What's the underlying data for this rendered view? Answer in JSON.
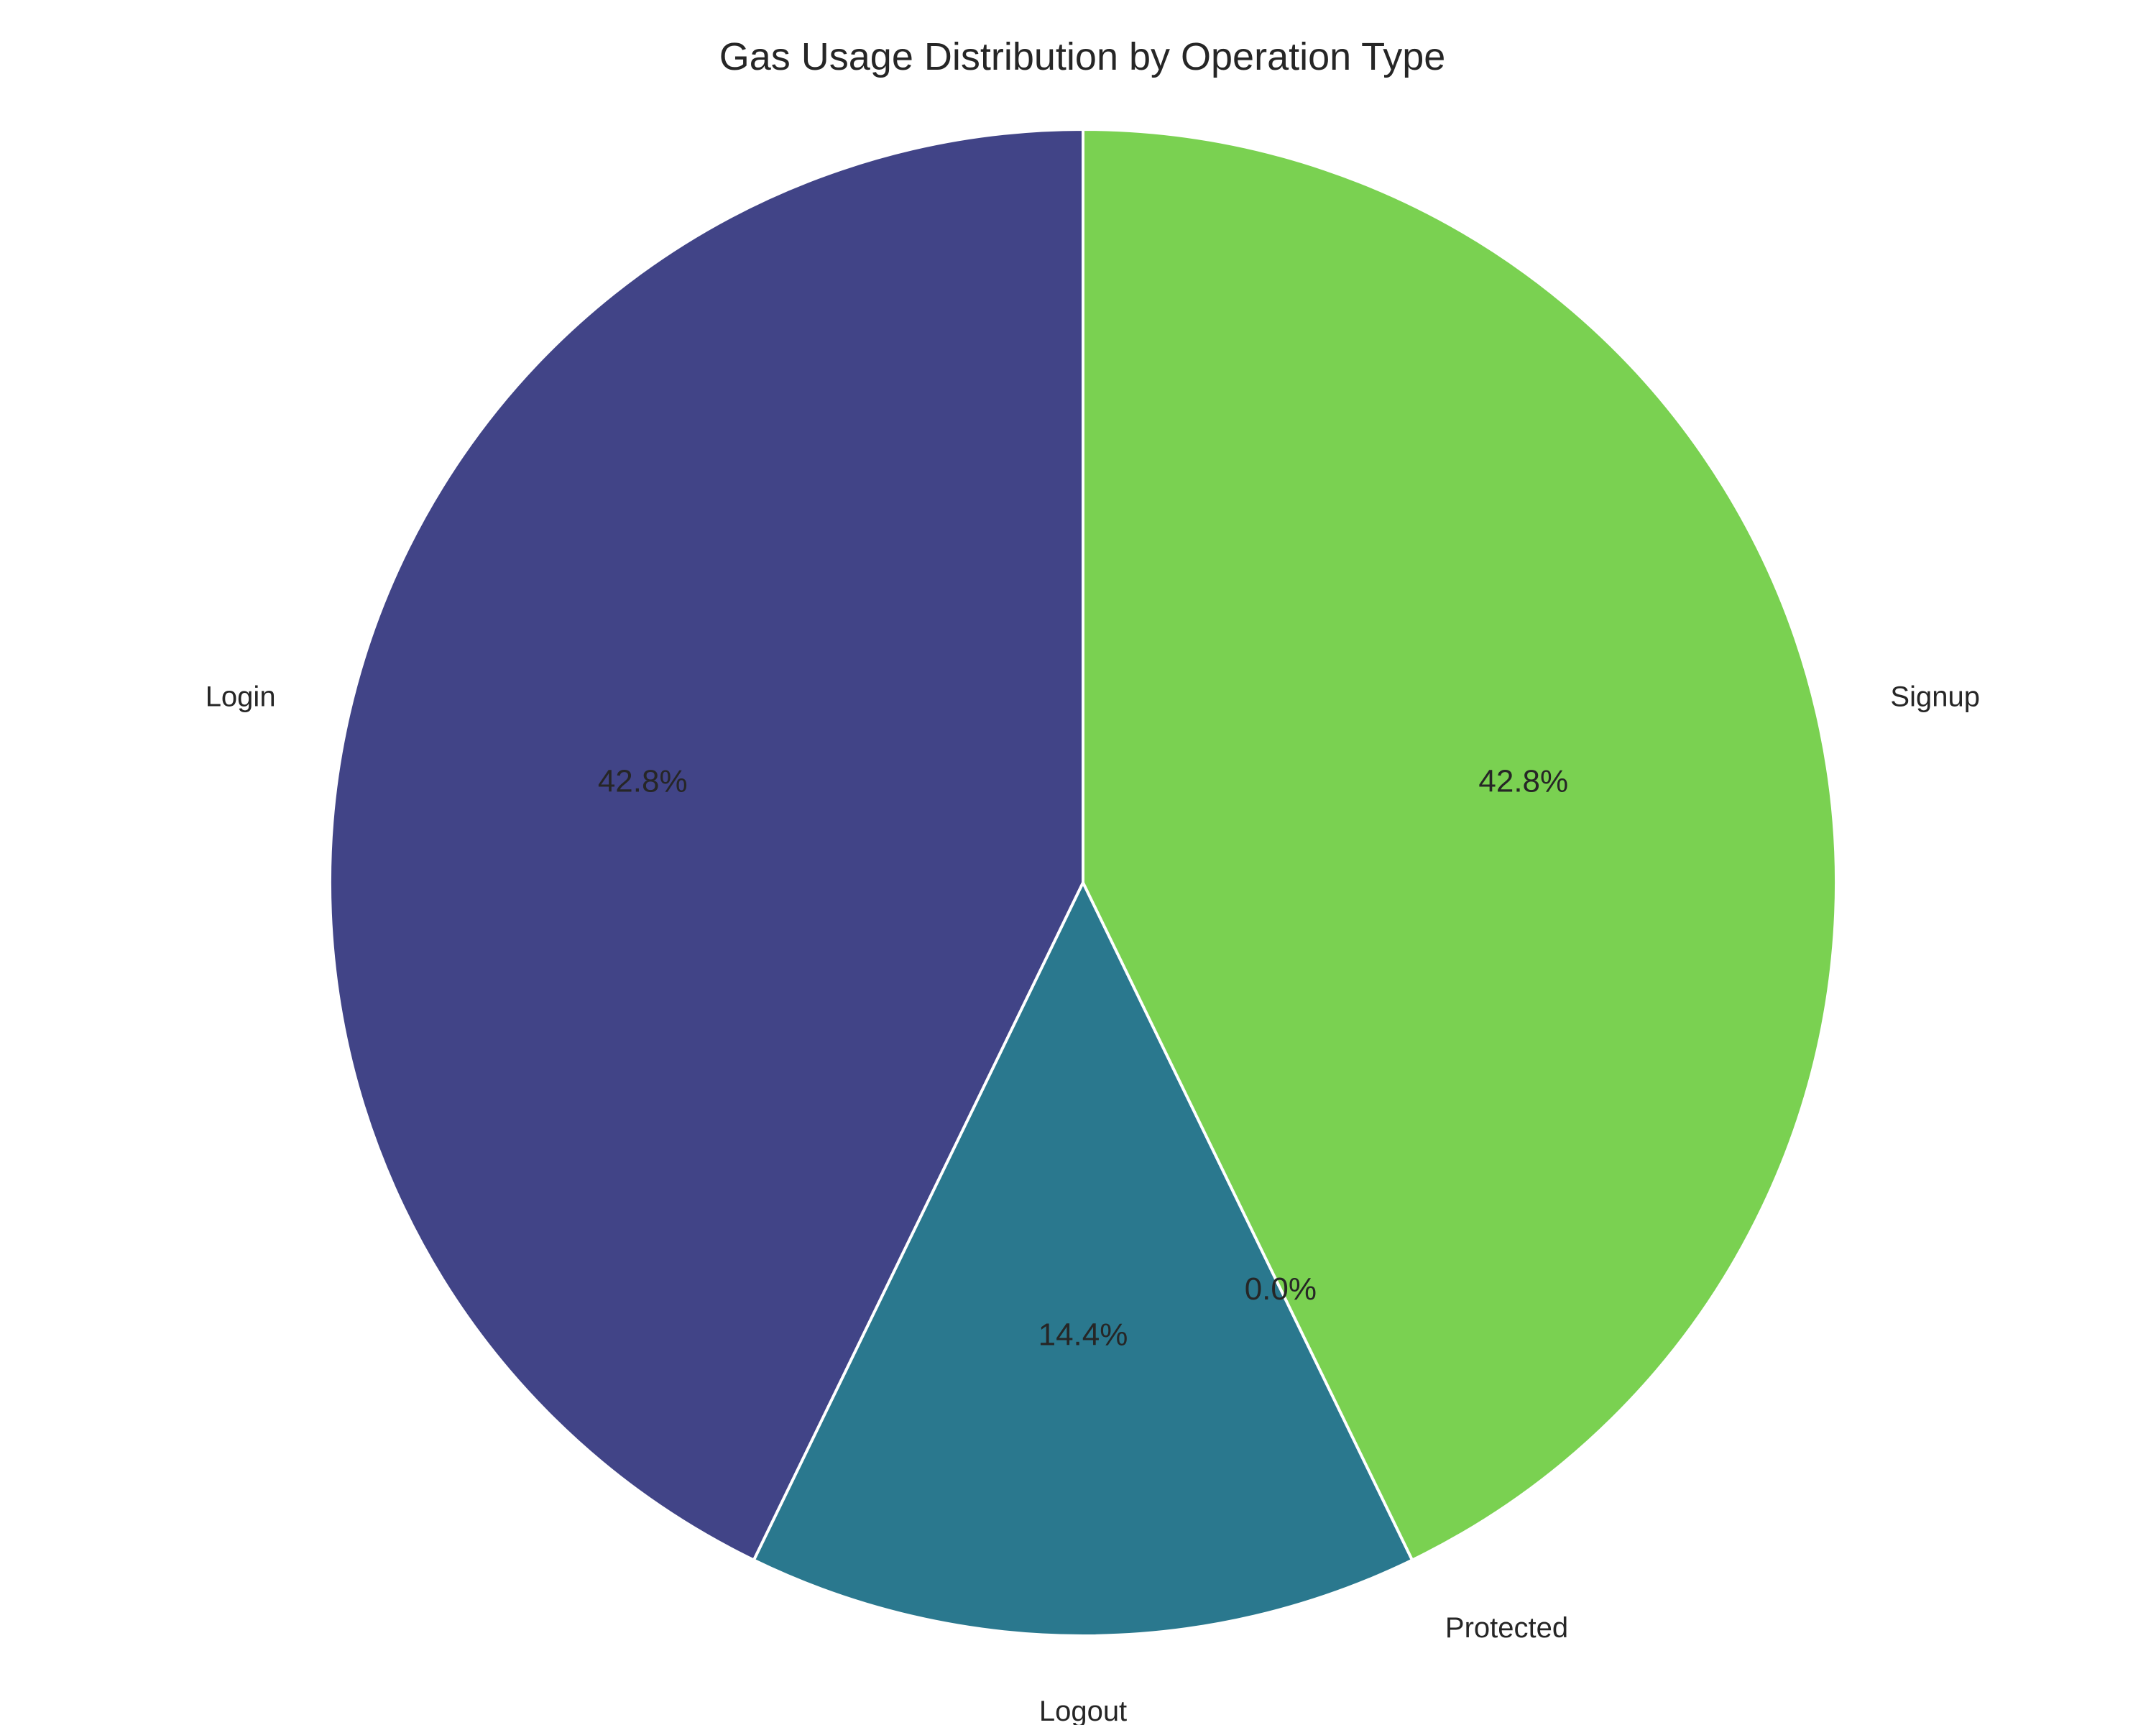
{
  "chart_data": {
    "type": "pie",
    "title": "Gas Usage Distribution by Operation Type",
    "start_angle_deg": 90,
    "direction": "counterclockwise",
    "slices": [
      {
        "label": "Login",
        "value": 42.8,
        "pct_text": "42.8%",
        "color": "#414487"
      },
      {
        "label": "Logout",
        "value": 14.4,
        "pct_text": "14.4%",
        "color": "#2a788e"
      },
      {
        "label": "Protected",
        "value": 0.0,
        "pct_text": "0.0%",
        "color": "#22a884"
      },
      {
        "label": "Signup",
        "value": 42.8,
        "pct_text": "42.8%",
        "color": "#7ad151"
      }
    ],
    "edge_color": "#ffffff"
  }
}
